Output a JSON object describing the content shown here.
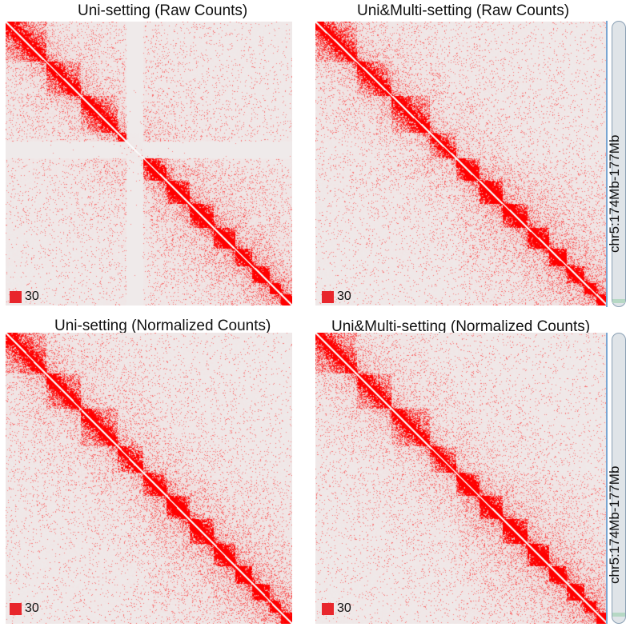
{
  "panels": [
    {
      "title": "Uni-setting (Raw Counts)",
      "legend_value": "30",
      "normalized": false,
      "multi": false
    },
    {
      "title": "Uni&Multi-setting (Raw Counts)",
      "legend_value": "30",
      "normalized": false,
      "multi": true
    },
    {
      "title": "Uni-setting (Normalized Counts)",
      "legend_value": "30",
      "normalized": true,
      "multi": false
    },
    {
      "title": "Uni&Multi-setting (Normalized Counts)",
      "legend_value": "30",
      "normalized": true,
      "multi": true
    }
  ],
  "region_label": "chr5:174Mb-177Mb",
  "chart_data": {
    "type": "heatmap",
    "description_values": {
      "color_scale_max": 30,
      "color_low": "#efefef",
      "color_high": "#ff0000"
    },
    "region": "chr5:174Mb-177Mb",
    "series": [
      {
        "name": "Uni-setting (Raw Counts)"
      },
      {
        "name": "Uni&Multi-setting (Raw Counts)"
      },
      {
        "name": "Uni-setting (Normalized Counts)"
      },
      {
        "name": "Uni&Multi-setting (Normalized Counts)"
      }
    ]
  }
}
